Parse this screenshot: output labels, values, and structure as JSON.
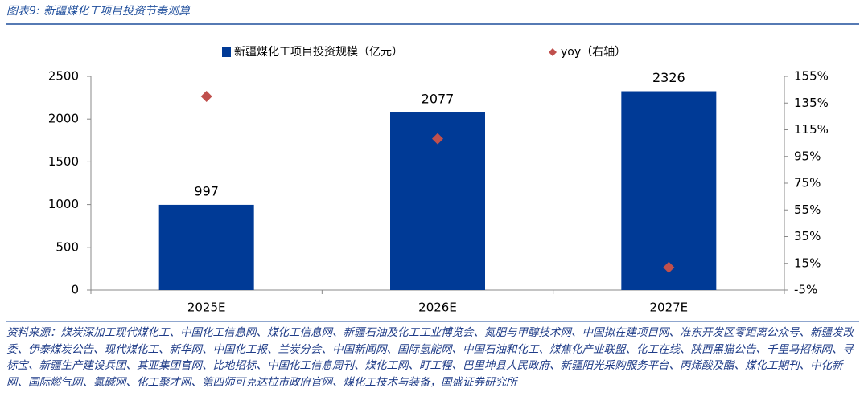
{
  "title": "图表9:  新疆煤化工项目投资节奏测算",
  "chart_data": {
    "type": "bar-line",
    "categories": [
      "2025E",
      "2026E",
      "2027E"
    ],
    "series": [
      {
        "name": "新疆煤化工项目投资规模（亿元）",
        "type": "bar",
        "color": "#003A96",
        "values": [
          997,
          2077,
          2326
        ]
      },
      {
        "name": "yoy（右轴）",
        "type": "scatter",
        "axis": "y2",
        "color": "#C0504D",
        "values": [
          140,
          108.3,
          12
        ]
      }
    ],
    "ylim": [
      0,
      2500
    ],
    "yticks": [
      0,
      500,
      1000,
      1500,
      2000,
      2500
    ],
    "y2lim": [
      -5,
      155
    ],
    "y2ticks": [
      {
        "value": -5,
        "label": "-5%"
      },
      {
        "value": 15,
        "label": "15%"
      },
      {
        "value": 35,
        "label": "35%"
      },
      {
        "value": 55,
        "label": "55%"
      },
      {
        "value": 75,
        "label": "75%"
      },
      {
        "value": 95,
        "label": "95%"
      },
      {
        "value": 115,
        "label": "115%"
      },
      {
        "value": 135,
        "label": "135%"
      },
      {
        "value": 155,
        "label": "155%"
      }
    ],
    "grid": false,
    "legend": "top"
  },
  "source": "资料来源：煤炭深加工现代煤化工、中国化工信息网、煤化工信息网、新疆石油及化工工业博览会、氮肥与甲醇技术网、中国拟在建项目网、准东开发区零距离公众号、新疆发改委、伊泰煤炭公告、现代煤化工、新华网、中国化工报、兰炭分会、中国新闻网、国际氢能网、中国石油和化工、煤焦化产业联盟、化工在线、陕西黑猫公告、千里马招标网、寻标宝、新疆生产建设兵团、其亚集团官网、比地招标、中国化工信息周刊、煤化工网、盯工程、巴里坤县人民政府、新疆阳光采购服务平台、丙烯酸及酯、煤化工期刊、中化新网、国际燃气网、氯碱网、化工聚才网、第四师可克达拉市政府官网、煤化工技术与装备，国盛证券研究所"
}
